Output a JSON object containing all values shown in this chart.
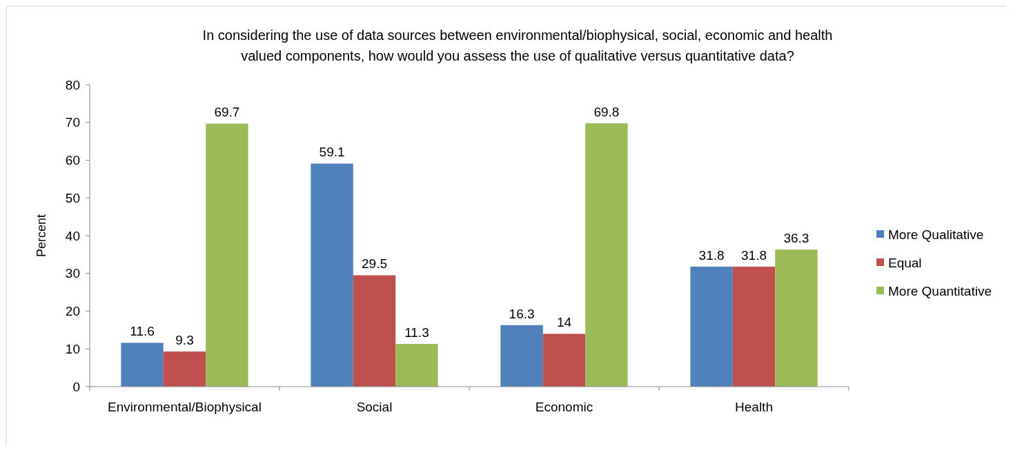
{
  "chart_data": {
    "type": "bar",
    "title": "In considering the use of data sources between environmental/biophysical, social, economic and health\nvalued components, how would you assess the use of qualitative versus quantitative data?",
    "ylabel": "Percent",
    "categories": [
      "Environmental/Biophysical",
      "Social",
      "Economic",
      "Health"
    ],
    "series": [
      {
        "name": "More Qualitative",
        "color": "#4f81bd",
        "values": [
          11.6,
          59.1,
          16.3,
          31.8
        ]
      },
      {
        "name": "Equal",
        "color": "#c0504d",
        "values": [
          9.3,
          29.5,
          14,
          31.8
        ]
      },
      {
        "name": "More Quantitative",
        "color": "#9bbb59",
        "values": [
          69.7,
          11.3,
          69.8,
          36.3
        ]
      }
    ],
    "ylim": [
      0,
      80
    ],
    "yticks": [
      0,
      10,
      20,
      30,
      40,
      50,
      60,
      70,
      80
    ],
    "grid": false,
    "legend": "right",
    "data_labels": true
  }
}
